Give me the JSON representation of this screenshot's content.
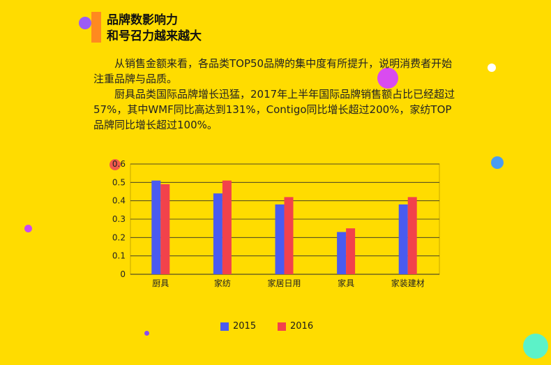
{
  "heading": {
    "line1": "品牌数影响力",
    "line2": "和号召力越来越大"
  },
  "paragraphs": [
    "从销售金额来看，各品类TOP50品牌的集中度有所提升，说明消费者开始注重品牌与品质。",
    "厨具品类国际品牌增长迅猛，2017年上半年国际品牌销售额占比已经超过57%，其中WMF同比高达到131%，Contigo同比增长超过200%，家纺TOP品牌同比增长超过100%。"
  ],
  "colors": {
    "background": "#FFDC00",
    "accent_bar": "#FF8A1F",
    "series_2015": "#4A5BF0",
    "series_2016": "#F2424B"
  },
  "chart_data": {
    "type": "bar",
    "categories": [
      "厨具",
      "家纺",
      "家居日用",
      "家具",
      "家装建材"
    ],
    "series": [
      {
        "name": "2015",
        "values": [
          0.51,
          0.44,
          0.38,
          0.23,
          0.38
        ],
        "color": "#4A5BF0"
      },
      {
        "name": "2016",
        "values": [
          0.49,
          0.51,
          0.42,
          0.25,
          0.42
        ],
        "color": "#F2424B"
      }
    ],
    "ylim": [
      0,
      0.6
    ],
    "yticks": [
      "0",
      "0.1",
      "0.2",
      "0.3",
      "0.4",
      "0.5",
      "0.6"
    ],
    "grid": true,
    "legend_position": "bottom"
  }
}
